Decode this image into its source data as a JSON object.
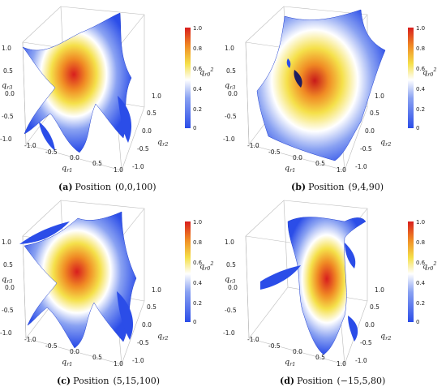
{
  "chart_data": [
    {
      "type": "surface3d",
      "caption_letter": "(a)",
      "caption_word": "Position",
      "caption_value": "(0,0,100)",
      "x_label": "q",
      "x_sub": "r1",
      "y_label": "q",
      "y_sub": "r2",
      "z_label": "q",
      "z_sub": "r3",
      "c_label": "q",
      "c_sub": "r0",
      "c_sup": "2",
      "x_ticks": [
        "-1.0",
        "-0.5",
        "0.0",
        "0.5",
        "1.0"
      ],
      "y_ticks": [
        "-1.0",
        "-0.5",
        "0.0",
        "0.5",
        "1.0"
      ],
      "z_ticks": [
        "-1.0",
        "-0.5",
        "0.0",
        "0.5",
        "1.0"
      ],
      "colorbar_ticks": [
        "0",
        "0.2",
        "0.4",
        "0.6",
        "0.8",
        "1.0"
      ],
      "colorbar_range": [
        0,
        1
      ]
    },
    {
      "type": "surface3d",
      "caption_letter": "(b)",
      "caption_word": "Position",
      "caption_value": "(9,4,90)",
      "x_label": "q",
      "x_sub": "r1",
      "y_label": "q",
      "y_sub": "r2",
      "z_label": "q",
      "z_sub": "r3",
      "c_label": "q",
      "c_sub": "r0",
      "c_sup": "2",
      "x_ticks": [
        "-1.0",
        "-0.5",
        "0.0",
        "0.5",
        "1.0"
      ],
      "y_ticks": [
        "-1.0",
        "-0.5",
        "0.0",
        "0.5",
        "1.0"
      ],
      "z_ticks": [
        "-1.0",
        "-0.5",
        "0.0",
        "0.5",
        "1.0"
      ],
      "colorbar_ticks": [
        "0",
        "0.2",
        "0.4",
        "0.6",
        "0.8",
        "1.0"
      ],
      "colorbar_range": [
        0,
        1
      ]
    },
    {
      "type": "surface3d",
      "caption_letter": "(c)",
      "caption_word": "Position",
      "caption_value": "(5,15,100)",
      "x_label": "q",
      "x_sub": "r1",
      "y_label": "q",
      "y_sub": "r2",
      "z_label": "q",
      "z_sub": "r3",
      "c_label": "q",
      "c_sub": "r0",
      "c_sup": "2",
      "x_ticks": [
        "-1.0",
        "-0.5",
        "0.0",
        "0.5",
        "1.0"
      ],
      "y_ticks": [
        "-1.0",
        "-0.5",
        "0.0",
        "0.5",
        "1.0"
      ],
      "z_ticks": [
        "-1.0",
        "-0.5",
        "0.0",
        "0.5",
        "1.0"
      ],
      "colorbar_ticks": [
        "0",
        "0.2",
        "0.4",
        "0.6",
        "0.8",
        "1.0"
      ],
      "colorbar_range": [
        0,
        1
      ]
    },
    {
      "type": "surface3d",
      "caption_letter": "(d)",
      "caption_word": "Position",
      "caption_value": "(−15,5,80)",
      "x_label": "q",
      "x_sub": "r1",
      "y_label": "q",
      "y_sub": "r2",
      "z_label": "q",
      "z_sub": "r3",
      "c_label": "q",
      "c_sub": "r0",
      "c_sup": "2",
      "x_ticks": [
        "-1.0",
        "-0.5",
        "0.0",
        "0.5",
        "1.0"
      ],
      "y_ticks": [
        "-1.0",
        "-0.5",
        "0.0",
        "0.5",
        "1.0"
      ],
      "z_ticks": [
        "-1.0",
        "-0.5",
        "0.0",
        "0.5",
        "1.0"
      ],
      "colorbar_ticks": [
        "0",
        "0.2",
        "0.4",
        "0.6",
        "0.8",
        "1.0"
      ],
      "colorbar_range": [
        0,
        1
      ]
    }
  ],
  "colorscale": [
    "#2b4de8",
    "#8aa2f2",
    "#ffffff",
    "#f5e04a",
    "#f08a24",
    "#d81e1e"
  ]
}
